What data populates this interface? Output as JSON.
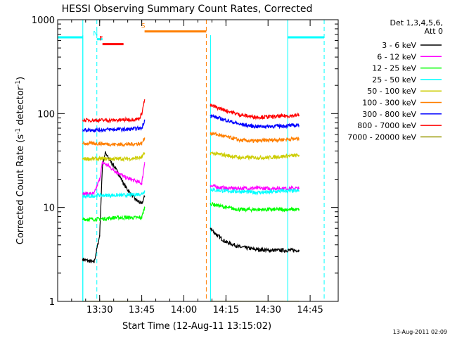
{
  "chart_data": {
    "type": "line",
    "title": "HESSI Observing Summary Count Rates, Corrected",
    "xlabel": "Start Time (12-Aug-11 13:15:02)",
    "ylabel": "Corrected Count Rate (s",
    "ylabel_sup1": "-1",
    "ylabel_mid": " detector",
    "ylabel_sup2": "-1",
    "ylabel_end": ")",
    "y_scale": "log",
    "ylim": [
      1,
      1000
    ],
    "xlim": [
      "13:15:02",
      "14:55:00"
    ],
    "x_ticks": [
      "13:30",
      "13:45",
      "14:00",
      "14:15",
      "14:30",
      "14:45"
    ],
    "y_ticks": [
      "1",
      "10",
      "100",
      "1000"
    ],
    "footer": "13-Aug-2011 02:09",
    "legend": {
      "position": "right",
      "header": [
        "Det 1,3,4,5,6,",
        "Att 0"
      ],
      "entries": [
        {
          "label": "3 - 6 keV",
          "color": "#000000"
        },
        {
          "label": "6 - 12 keV",
          "color": "#ff00ff"
        },
        {
          "label": "12 - 25 keV",
          "color": "#00ff00"
        },
        {
          "label": "25 - 50 keV",
          "color": "#00ffff"
        },
        {
          "label": "50 - 100 keV",
          "color": "#cccc00"
        },
        {
          "label": "100 - 300 keV",
          "color": "#ff7f00"
        },
        {
          "label": "300 - 800 keV",
          "color": "#0000ff"
        },
        {
          "label": "800 - 7000 keV",
          "color": "#ff0000"
        },
        {
          "label": "7000 - 20000 keV",
          "color": "#999900"
        }
      ]
    },
    "flags": [
      {
        "label": "N",
        "color": "#00ffff",
        "start": "13:29:00",
        "end": "13:31:00",
        "level": 620
      },
      {
        "label": "F",
        "color": "#ff0000",
        "start": "13:31:00",
        "end": "13:38:30",
        "level": 550
      },
      {
        "label": "S",
        "color": "#ff7f00",
        "start": "13:46:00",
        "end": "14:08:00",
        "level": 750
      }
    ],
    "saa_level": 650,
    "saa_intervals": [
      [
        "13:15:02",
        "13:24:00"
      ],
      [
        "14:37:00",
        "14:50:00"
      ]
    ],
    "night_lines": [
      "13:24:00",
      "13:29:00",
      "14:37:00",
      "14:50:00"
    ],
    "saa_lines": [
      "14:08:00"
    ],
    "data_segments": [
      [
        "13:24:00",
        "13:46:00"
      ],
      [
        "14:09:30",
        "14:41:00"
      ]
    ],
    "series": [
      {
        "name": "3 - 6 keV",
        "color": "#000000",
        "values": [
          [
            "13:24:00",
            2.8
          ],
          [
            "13:28:00",
            2.6
          ],
          [
            "13:30:00",
            5
          ],
          [
            "13:31:00",
            28
          ],
          [
            "13:32:00",
            38
          ],
          [
            "13:33:00",
            34
          ],
          [
            "13:35:00",
            28
          ],
          [
            "13:37:00",
            22
          ],
          [
            "13:39:00",
            17
          ],
          [
            "13:41:00",
            14
          ],
          [
            "13:43:00",
            12
          ],
          [
            "13:45:00",
            11
          ],
          [
            "13:46:00",
            13
          ],
          [
            "14:09:30",
            6
          ],
          [
            "14:12:00",
            5
          ],
          [
            "14:15:00",
            4.3
          ],
          [
            "14:20:00",
            3.8
          ],
          [
            "14:25:00",
            3.6
          ],
          [
            "14:30:00",
            3.5
          ],
          [
            "14:35:00",
            3.5
          ],
          [
            "14:41:00",
            3.5
          ]
        ]
      },
      {
        "name": "6 - 12 keV",
        "color": "#ff00ff",
        "values": [
          [
            "13:24:00",
            14
          ],
          [
            "13:28:00",
            14
          ],
          [
            "13:30:00",
            20
          ],
          [
            "13:31:00",
            30
          ],
          [
            "13:33:00",
            28
          ],
          [
            "13:35:00",
            25
          ],
          [
            "13:37:00",
            23
          ],
          [
            "13:39:00",
            21
          ],
          [
            "13:41:00",
            20
          ],
          [
            "13:43:00",
            19
          ],
          [
            "13:45:00",
            18
          ],
          [
            "13:46:00",
            30
          ],
          [
            "14:09:30",
            17
          ],
          [
            "14:15:00",
            16
          ],
          [
            "14:20:00",
            16
          ],
          [
            "14:25:00",
            16
          ],
          [
            "14:30:00",
            16
          ],
          [
            "14:35:00",
            16
          ],
          [
            "14:41:00",
            16
          ]
        ]
      },
      {
        "name": "12 - 25 keV",
        "color": "#00ff00",
        "values": [
          [
            "13:24:00",
            7.5
          ],
          [
            "13:30:00",
            7.5
          ],
          [
            "13:35:00",
            7.8
          ],
          [
            "13:40:00",
            7.8
          ],
          [
            "13:45:00",
            7.8
          ],
          [
            "13:46:00",
            10
          ],
          [
            "14:09:30",
            11
          ],
          [
            "14:15:00",
            10
          ],
          [
            "14:20:00",
            9.5
          ],
          [
            "14:25:00",
            9.5
          ],
          [
            "14:30:00",
            9.5
          ],
          [
            "14:35:00",
            9.5
          ],
          [
            "14:41:00",
            9.5
          ]
        ]
      },
      {
        "name": "25 - 50 keV",
        "color": "#00ffff",
        "values": [
          [
            "13:24:00",
            13
          ],
          [
            "13:30:00",
            13.5
          ],
          [
            "13:35:00",
            13.5
          ],
          [
            "13:40:00",
            13.5
          ],
          [
            "13:45:00",
            14
          ],
          [
            "13:46:00",
            15
          ],
          [
            "14:09:30",
            15.5
          ],
          [
            "14:15:00",
            15
          ],
          [
            "14:20:00",
            14.8
          ],
          [
            "14:25:00",
            14.5
          ],
          [
            "14:30:00",
            14.5
          ],
          [
            "14:35:00",
            15
          ],
          [
            "14:41:00",
            15
          ]
        ]
      },
      {
        "name": "50 - 100 keV",
        "color": "#cccc00",
        "values": [
          [
            "13:24:00",
            33
          ],
          [
            "13:30:00",
            33
          ],
          [
            "13:35:00",
            33
          ],
          [
            "13:40:00",
            33
          ],
          [
            "13:45:00",
            34
          ],
          [
            "13:46:00",
            38
          ],
          [
            "14:09:30",
            38
          ],
          [
            "14:15:00",
            36
          ],
          [
            "14:20:00",
            34
          ],
          [
            "14:25:00",
            34
          ],
          [
            "14:30:00",
            34
          ],
          [
            "14:35:00",
            35
          ],
          [
            "14:41:00",
            36
          ]
        ]
      },
      {
        "name": "100 - 300 keV",
        "color": "#ff7f00",
        "values": [
          [
            "13:24:00",
            48
          ],
          [
            "13:30:00",
            48
          ],
          [
            "13:35:00",
            47
          ],
          [
            "13:40:00",
            47
          ],
          [
            "13:45:00",
            48
          ],
          [
            "13:46:00",
            55
          ],
          [
            "14:09:30",
            62
          ],
          [
            "14:15:00",
            57
          ],
          [
            "14:20:00",
            52
          ],
          [
            "14:25:00",
            51
          ],
          [
            "14:30:00",
            52
          ],
          [
            "14:35:00",
            53
          ],
          [
            "14:41:00",
            54
          ]
        ]
      },
      {
        "name": "300 - 800 keV",
        "color": "#0000ff",
        "values": [
          [
            "13:24:00",
            67
          ],
          [
            "13:30:00",
            67
          ],
          [
            "13:35:00",
            68
          ],
          [
            "13:40:00",
            68
          ],
          [
            "13:45:00",
            70
          ],
          [
            "13:46:00",
            85
          ],
          [
            "14:09:30",
            95
          ],
          [
            "14:15:00",
            85
          ],
          [
            "14:20:00",
            77
          ],
          [
            "14:25:00",
            73
          ],
          [
            "14:30:00",
            73
          ],
          [
            "14:35:00",
            74
          ],
          [
            "14:41:00",
            75
          ]
        ]
      },
      {
        "name": "800 - 7000 keV",
        "color": "#ff0000",
        "values": [
          [
            "13:24:00",
            85
          ],
          [
            "13:30:00",
            85
          ],
          [
            "13:35:00",
            85
          ],
          [
            "13:40:00",
            86
          ],
          [
            "13:44:00",
            88
          ],
          [
            "13:45:00",
            100
          ],
          [
            "13:46:00",
            140
          ],
          [
            "14:09:30",
            122
          ],
          [
            "14:15:00",
            108
          ],
          [
            "14:20:00",
            97
          ],
          [
            "14:25:00",
            92
          ],
          [
            "14:30:00",
            92
          ],
          [
            "14:35:00",
            94
          ],
          [
            "14:41:00",
            96
          ]
        ]
      },
      {
        "name": "7000 - 20000 keV",
        "color": "#999900",
        "values": [
          [
            "13:24:00",
            1
          ],
          [
            "13:30:00",
            1
          ],
          [
            "13:35:00",
            1
          ],
          [
            "13:40:00",
            1
          ],
          [
            "13:45:00",
            1
          ],
          [
            "13:46:00",
            1
          ],
          [
            "14:09:30",
            1
          ],
          [
            "14:15:00",
            1
          ],
          [
            "14:20:00",
            1
          ],
          [
            "14:25:00",
            1
          ],
          [
            "14:30:00",
            1
          ],
          [
            "14:35:00",
            1
          ],
          [
            "14:41:00",
            1
          ]
        ]
      }
    ]
  }
}
